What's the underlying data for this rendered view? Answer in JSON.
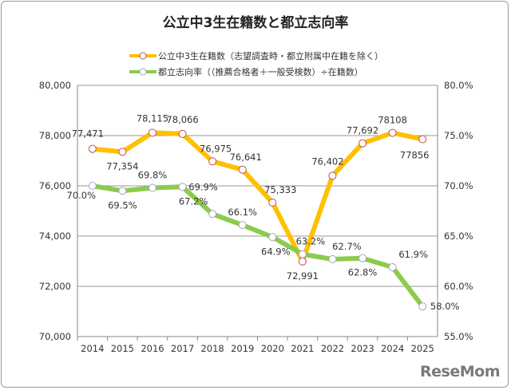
{
  "chart_data": {
    "type": "line",
    "title": "公立中3生在籍数と都立志向率",
    "categories": [
      "2014",
      "2015",
      "2016",
      "2017",
      "2018",
      "2019",
      "2020",
      "2021",
      "2022",
      "2023",
      "2024",
      "2025"
    ],
    "series": [
      {
        "name": "公立中3生在籍数（志望調査時・都立附属中在籍を除く）",
        "axis": "left",
        "color": "#FFC000",
        "values": [
          77471,
          77354,
          78115,
          78066,
          76975,
          76641,
          75333,
          72991,
          76402,
          77692,
          78108,
          77856
        ],
        "labels": [
          "77,471",
          "77,354",
          "78,115",
          "78,066",
          "76,975",
          "76,641",
          "75,333",
          "72,991",
          "76,402",
          "77,692",
          "78108",
          "77856"
        ]
      },
      {
        "name": "都立志向率（（推薦合格者＋一般受検数）÷在籍数）",
        "axis": "right",
        "color": "#8CCB4B",
        "values": [
          70.0,
          69.5,
          69.8,
          69.9,
          67.2,
          66.1,
          64.9,
          63.2,
          62.7,
          62.8,
          61.9,
          58.0
        ],
        "labels": [
          "70.0%",
          "69.5%",
          "69.8%",
          "69.9%",
          "67.2%",
          "66.1%",
          "64.9%",
          "63.2%",
          "62.7%",
          "62.8%",
          "61.9%",
          "58.0%"
        ]
      }
    ],
    "y_left": {
      "range": [
        70000,
        80000
      ],
      "ticks": [
        "70,000",
        "72,000",
        "74,000",
        "76,000",
        "78,000",
        "80,000"
      ]
    },
    "y_right": {
      "range": [
        55,
        80
      ],
      "ticks": [
        "55.0%",
        "60.0%",
        "65.0%",
        "70.0%",
        "75.0%",
        "80.0%"
      ]
    },
    "grid": true,
    "legend": "top"
  },
  "watermark": "ReseMom"
}
